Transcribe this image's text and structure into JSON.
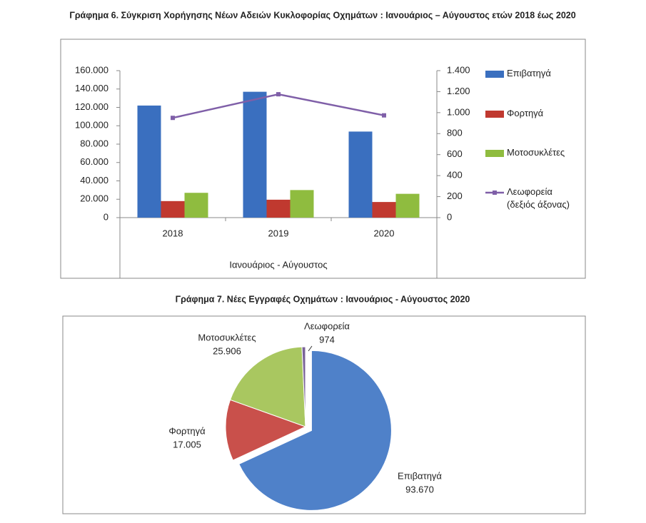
{
  "chart_data": [
    {
      "type": "bar",
      "title": "Γράφημα 6. Σύγκριση Χορήγησης Νέων Αδειών Κυκλοφορίας Οχημάτων : Ιανουάριος – Αύγουστος ετών 2018 έως 2020",
      "x_label": "Ιανουάριος - Αύγουστος",
      "categories": [
        "2018",
        "2019",
        "2020"
      ],
      "series": [
        {
          "name": "Επιβατηγά",
          "color": "#3a6fbf",
          "values": [
            122000,
            137000,
            93670
          ]
        },
        {
          "name": "Φορτηγά",
          "color": "#c0392f",
          "values": [
            18000,
            19500,
            17005
          ]
        },
        {
          "name": "Μοτοσυκλέτες",
          "color": "#8fbc3f",
          "values": [
            27000,
            30000,
            25906
          ]
        },
        {
          "name": "Λεωφορεία (δεξιός άξονας)",
          "color": "#7f5fa8",
          "axis": "y2",
          "type": "line",
          "values": [
            950,
            1175,
            974
          ]
        }
      ],
      "ylim": [
        0,
        160000
      ],
      "yticks": [
        0,
        {
          "value": 20000,
          "label": "20.000"
        },
        {
          "value": 40000,
          "label": "40.000"
        },
        {
          "value": 60000,
          "label": "60.000"
        },
        {
          "value": 80000,
          "label": "80.000"
        },
        {
          "value": 100000,
          "label": "100.000"
        },
        {
          "value": 120000,
          "label": "120.000"
        },
        {
          "value": 140000,
          "label": "140.000"
        },
        {
          "value": 160000,
          "label": "160.000"
        }
      ],
      "y2lim": [
        0,
        1400
      ],
      "y2ticks": [
        0,
        200,
        400,
        600,
        800,
        {
          "value": 1000,
          "label": "1.000"
        },
        {
          "value": 1200,
          "label": "1.200"
        },
        {
          "value": 1400,
          "label": "1.400"
        }
      ],
      "grid": false,
      "legend": "right"
    },
    {
      "type": "pie",
      "title": "Γράφημα 7. Νέες Εγγραφές Οχημάτων : Ιανουάριος - Αύγουστος  2020",
      "categories": [
        "Επιβατηγά",
        "Φορτηγά",
        "Μοτοσυκλέτες",
        "Λεωφορεία"
      ],
      "values": [
        93670,
        17005,
        25906,
        974
      ],
      "value_labels": [
        "93.670",
        "17.005",
        "25.906",
        "974"
      ],
      "colors": [
        "#4f81c9",
        "#c9504b",
        "#a9c760",
        "#7a6398"
      ]
    }
  ]
}
